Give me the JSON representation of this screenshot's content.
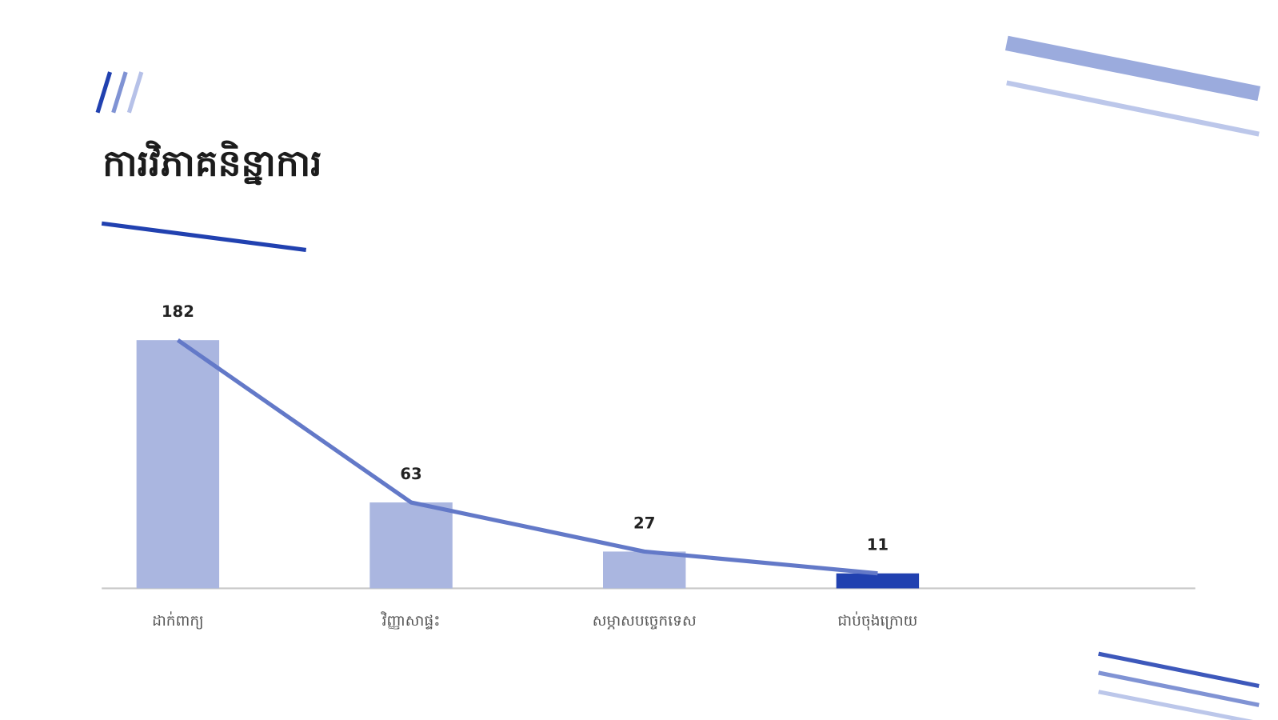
{
  "chart_data": {
    "type": "bar",
    "title": "ការវិភាគនិន្នាការ",
    "categories": [
      "ដាក់ពាក្យ",
      "វិញ្ញាសាផ្ទះ",
      "សម្ភាសបច្ចេកទេស",
      "ជាប់ចុងក្រោយ"
    ],
    "values": [
      182,
      63,
      27,
      11
    ],
    "colors": [
      "#aab6e0",
      "#aab6e0",
      "#aab6e0",
      "#2141b0"
    ],
    "line_color": "#6379c8"
  }
}
